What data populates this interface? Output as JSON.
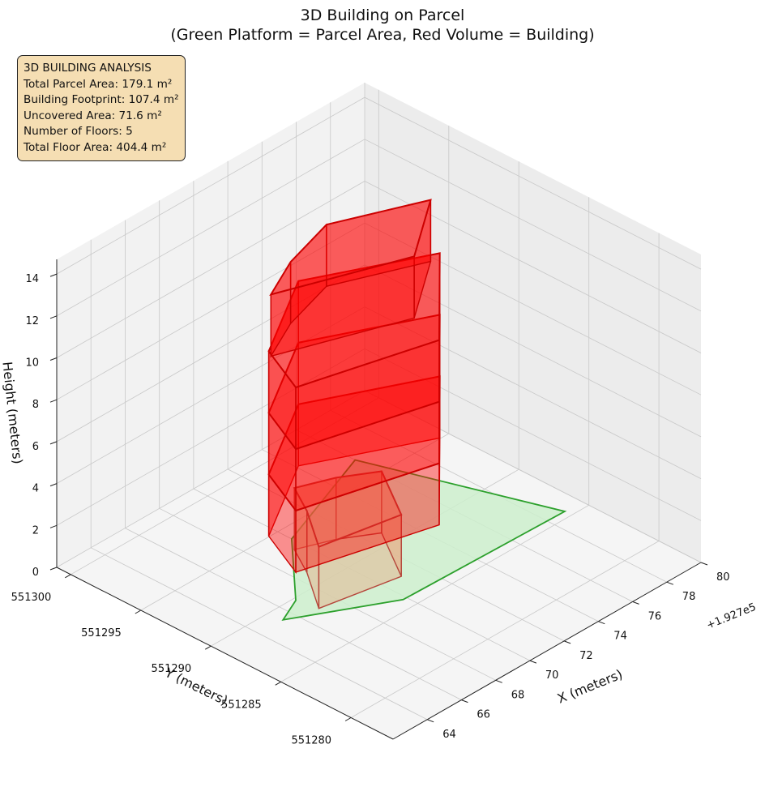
{
  "title_line1": "3D Building on Parcel",
  "title_line2": "(Green Platform = Parcel Area, Red Volume = Building)",
  "info_box": {
    "heading": "3D BUILDING ANALYSIS",
    "total_parcel_area": "Total Parcel Area: 179.1 m²",
    "building_footprint": "Building Footprint: 107.4 m²",
    "uncovered_area": "Uncovered Area: 71.6 m²",
    "number_of_floors": "Number of Floors: 5",
    "total_floor_area": "Total Floor Area: 404.4 m²"
  },
  "colors": {
    "parcel_fill": "#cdefcd",
    "parcel_edge": "#2ca02c",
    "building_fill": "#ff0000",
    "building_edge": "#cc0000",
    "pane": "#f2f2f2",
    "grid": "#c8c8c8",
    "info_box_bg": "#f5deb3"
  },
  "chart_data": {
    "type": "3d-polygon",
    "title": "3D Building on Parcel\n(Green Platform = Parcel Area, Red Volume = Building)",
    "xlabel": "X (meters)",
    "ylabel": "Y (meters)",
    "zlabel": "Height (meters)",
    "x_offset_label": "+1.927e5",
    "x_ticks": [
      "64",
      "66",
      "68",
      "70",
      "72",
      "74",
      "76",
      "78",
      "80"
    ],
    "y_ticks": [
      "551280",
      "551285",
      "551290",
      "551295",
      "551300"
    ],
    "z_ticks": [
      "0",
      "2",
      "4",
      "6",
      "8",
      "10",
      "12",
      "14"
    ],
    "x_range": [
      192762,
      192780
    ],
    "y_range": [
      551277,
      551301
    ],
    "z_range": [
      0,
      14.7
    ],
    "parcel_area": 179.1,
    "building_footprint": 107.4,
    "uncovered_area": 71.6,
    "floors": 5,
    "total_floor_area": 404.4,
    "floor_height": 2.94,
    "grid": true
  }
}
